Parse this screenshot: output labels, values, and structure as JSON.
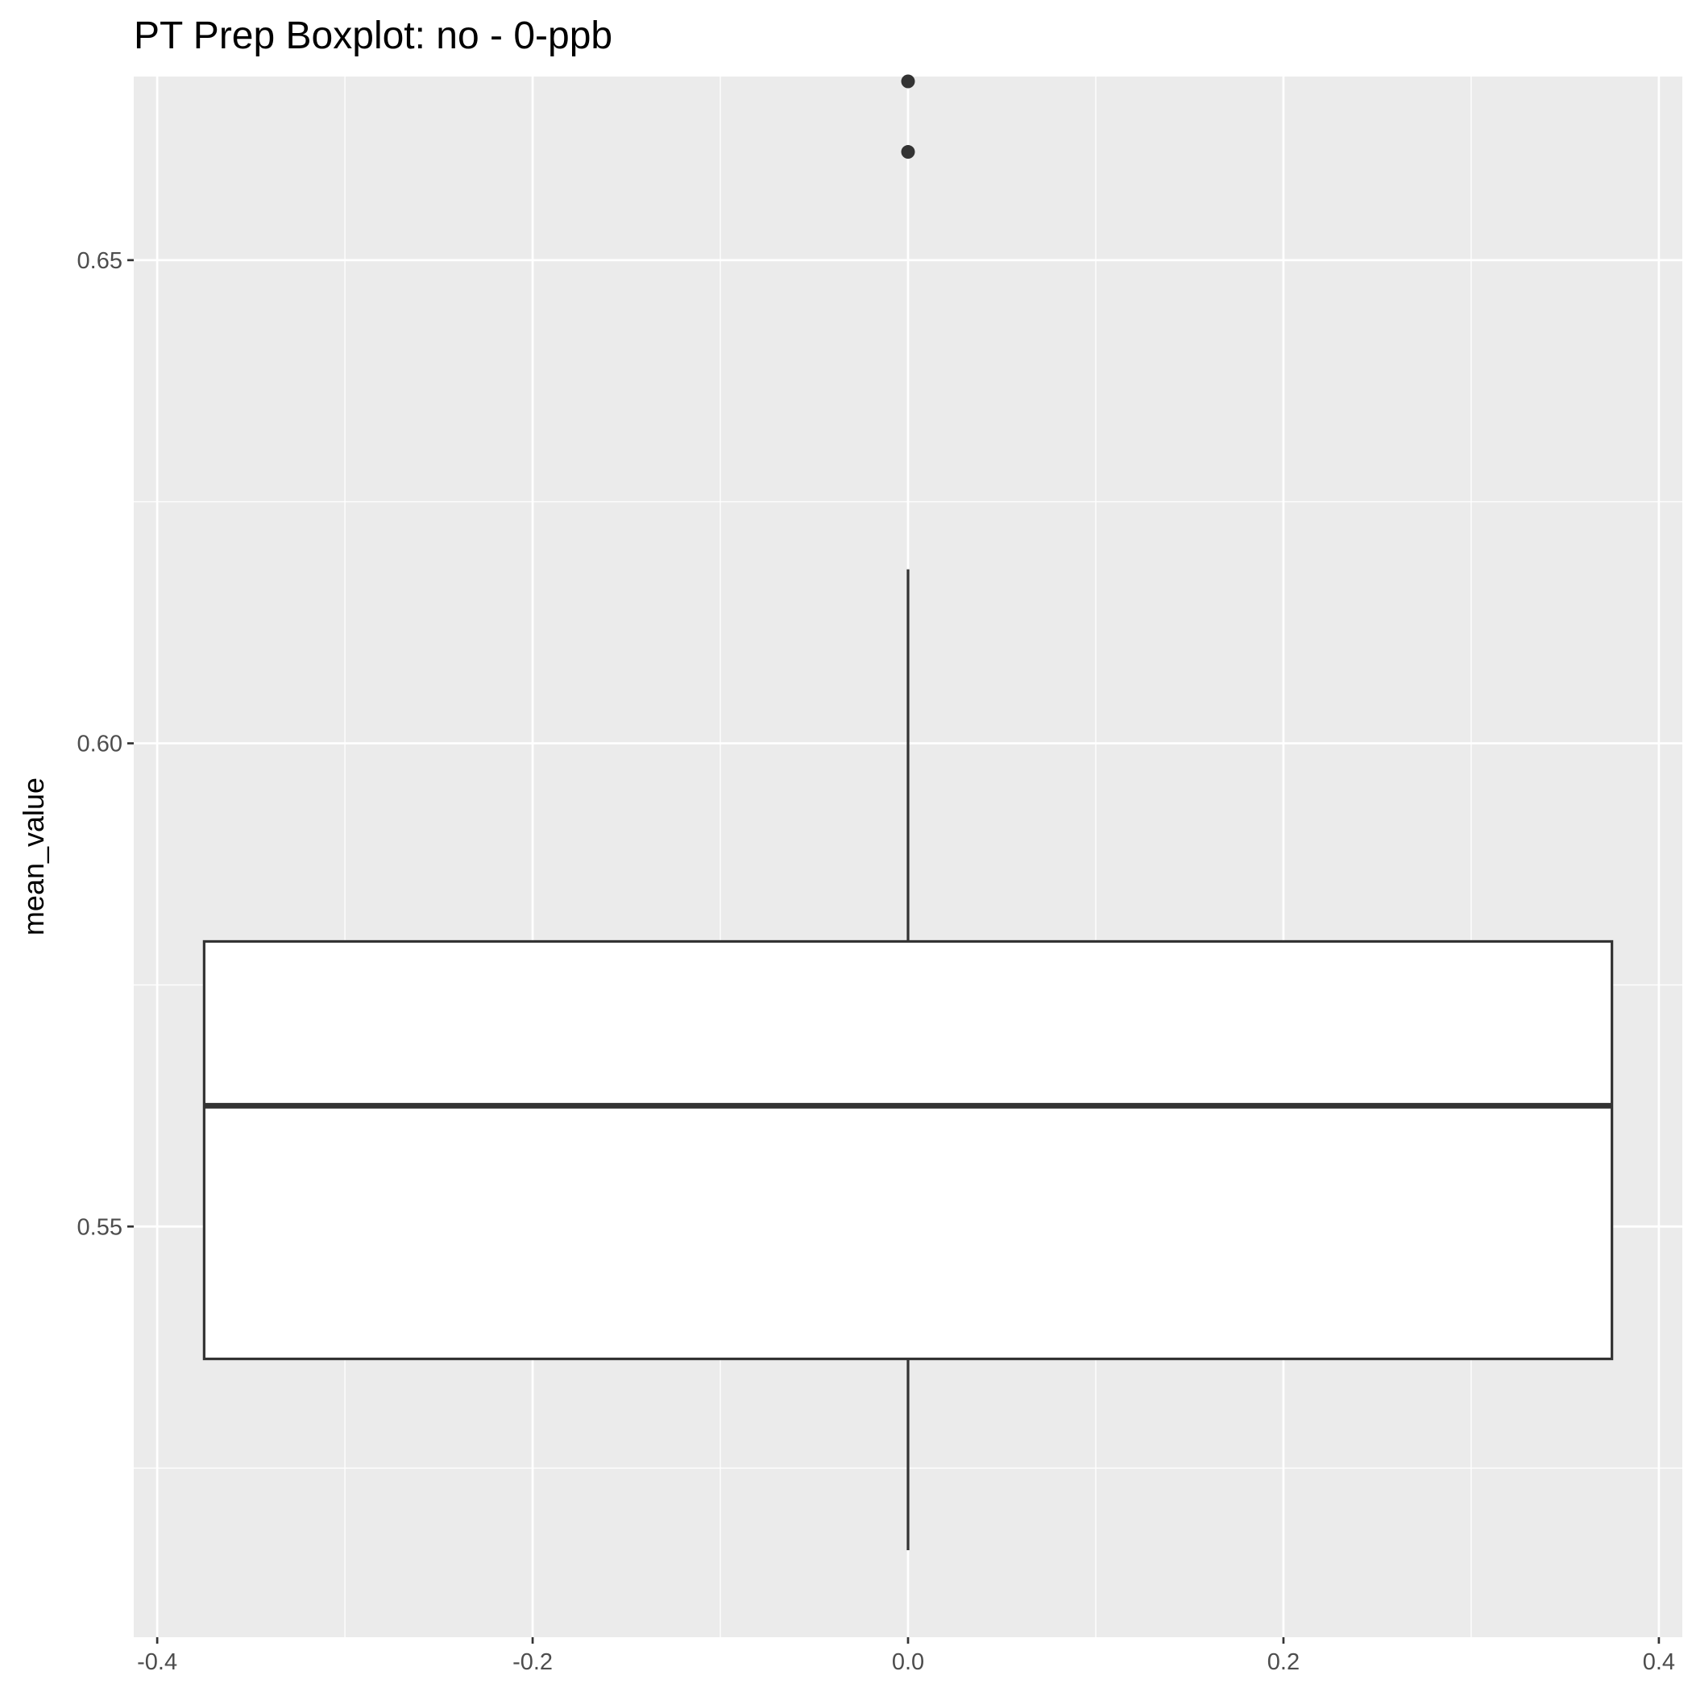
{
  "chart_data": {
    "type": "boxplot",
    "title": "PT Prep Boxplot: no - 0-ppb",
    "xlabel": "",
    "ylabel": "mean_value",
    "xlim": [
      -0.4125,
      0.4125
    ],
    "ylim": [
      0.5075,
      0.669
    ],
    "x_ticks": [
      {
        "value": -0.4,
        "label": "-0.4"
      },
      {
        "value": -0.2,
        "label": "-0.2"
      },
      {
        "value": 0.0,
        "label": "0.0"
      },
      {
        "value": 0.2,
        "label": "0.2"
      },
      {
        "value": 0.4,
        "label": "0.4"
      }
    ],
    "y_ticks": [
      {
        "value": 0.55,
        "label": "0.55"
      },
      {
        "value": 0.6,
        "label": "0.60"
      },
      {
        "value": 0.65,
        "label": "0.65"
      }
    ],
    "grid": true,
    "box": {
      "x": 0.0,
      "x_left": -0.375,
      "x_right": 0.375,
      "whisker_low": 0.5165,
      "q1": 0.5363,
      "median": 0.5625,
      "q3": 0.5795,
      "whisker_high": 0.618
    },
    "outliers": [
      {
        "x": 0.0,
        "y": 0.6685
      },
      {
        "x": 0.0,
        "y": 0.6612
      }
    ],
    "colors": {
      "panel_background": "#ebebeb",
      "grid": "#ffffff",
      "box_fill": "#ffffff",
      "box_line": "#333333",
      "tick": "#333333"
    }
  }
}
